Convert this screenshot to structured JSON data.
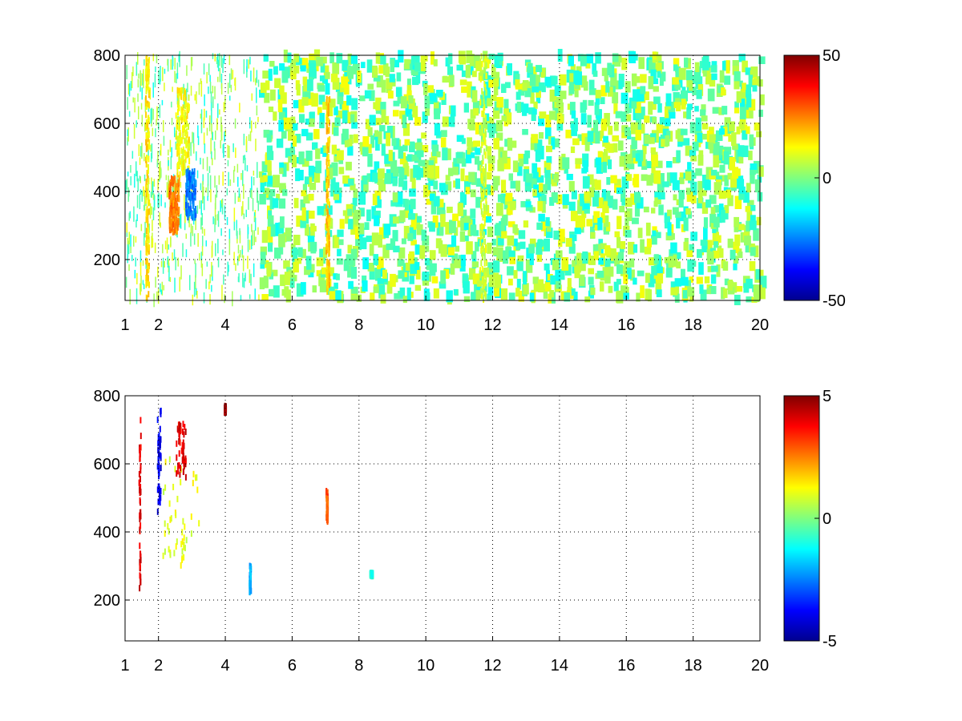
{
  "figure": {
    "background": "#ffffff",
    "grid_color": "#000000",
    "colormap": "jet"
  },
  "chart_data": [
    {
      "type": "heatmap",
      "title": "",
      "xlabel": "",
      "ylabel": "",
      "xlim": [
        1,
        20
      ],
      "ylim": [
        80,
        800
      ],
      "xticks": [
        1,
        2,
        4,
        6,
        8,
        10,
        12,
        14,
        16,
        18,
        20
      ],
      "xtick_labels": [
        "1",
        "2",
        "4",
        "6",
        "8",
        "10",
        "12",
        "14",
        "16",
        "18",
        "20"
      ],
      "yticks": [
        200,
        400,
        600,
        800
      ],
      "ytick_labels": [
        "200",
        "400",
        "600",
        "800"
      ],
      "grid": true,
      "colorbar": {
        "range": [
          -50,
          50
        ],
        "ticks": [
          50,
          0,
          -50
        ],
        "tick_labels": [
          "50",
          "0",
          "-50"
        ]
      },
      "features": [
        {
          "x": [
            1.0,
            20.0
          ],
          "y": [
            80,
            800
          ],
          "value_range": [
            -10,
            12
          ],
          "density": "sparse",
          "description_values": [
            0,
            5,
            -5
          ]
        },
        {
          "x": [
            2.3,
            2.6
          ],
          "y": [
            280,
            440
          ],
          "value": 25
        },
        {
          "x": [
            2.5,
            2.9
          ],
          "y": [
            450,
            700
          ],
          "value": 12
        },
        {
          "x": [
            2.8,
            3.1
          ],
          "y": [
            320,
            460
          ],
          "value": -25
        },
        {
          "x": [
            1.6,
            1.7
          ],
          "y": [
            80,
            800
          ],
          "value": 15
        },
        {
          "x": [
            7.0,
            7.1
          ],
          "y": [
            100,
            680
          ],
          "value": 18
        },
        {
          "x": [
            11.6,
            11.8
          ],
          "y": [
            80,
            800
          ],
          "value": 8
        }
      ]
    },
    {
      "type": "heatmap",
      "title": "",
      "xlabel": "",
      "ylabel": "",
      "xlim": [
        1,
        20
      ],
      "ylim": [
        80,
        800
      ],
      "xticks": [
        1,
        2,
        4,
        6,
        8,
        10,
        12,
        14,
        16,
        18,
        20
      ],
      "xtick_labels": [
        "1",
        "2",
        "4",
        "6",
        "8",
        "10",
        "12",
        "14",
        "16",
        "18",
        "20"
      ],
      "yticks": [
        200,
        400,
        600,
        800
      ],
      "ytick_labels": [
        "200",
        "400",
        "600",
        "800"
      ],
      "grid": true,
      "colorbar": {
        "range": [
          -5,
          5
        ],
        "ticks": [
          5,
          0,
          -5
        ],
        "tick_labels": [
          "5",
          "0",
          "-5"
        ]
      },
      "features": [
        {
          "x": [
            2.1,
            3.2
          ],
          "y": [
            300,
            620
          ],
          "value": 1
        },
        {
          "x": [
            1.4,
            1.45
          ],
          "y": [
            220,
            740
          ],
          "value": 4
        },
        {
          "x": [
            1.95,
            2.05
          ],
          "y": [
            450,
            760
          ],
          "value": -4
        },
        {
          "x": [
            2.5,
            2.8
          ],
          "y": [
            560,
            720
          ],
          "value": 4
        },
        {
          "x": [
            7.0,
            7.05
          ],
          "y": [
            430,
            520
          ],
          "value": 3
        },
        {
          "x": [
            4.7,
            4.75
          ],
          "y": [
            220,
            300
          ],
          "value": -2
        },
        {
          "x": [
            8.3,
            8.4
          ],
          "y": [
            270,
            280
          ],
          "value": -1
        },
        {
          "x": [
            3.95,
            4.0
          ],
          "y": [
            750,
            770
          ],
          "value": 5
        }
      ]
    }
  ]
}
